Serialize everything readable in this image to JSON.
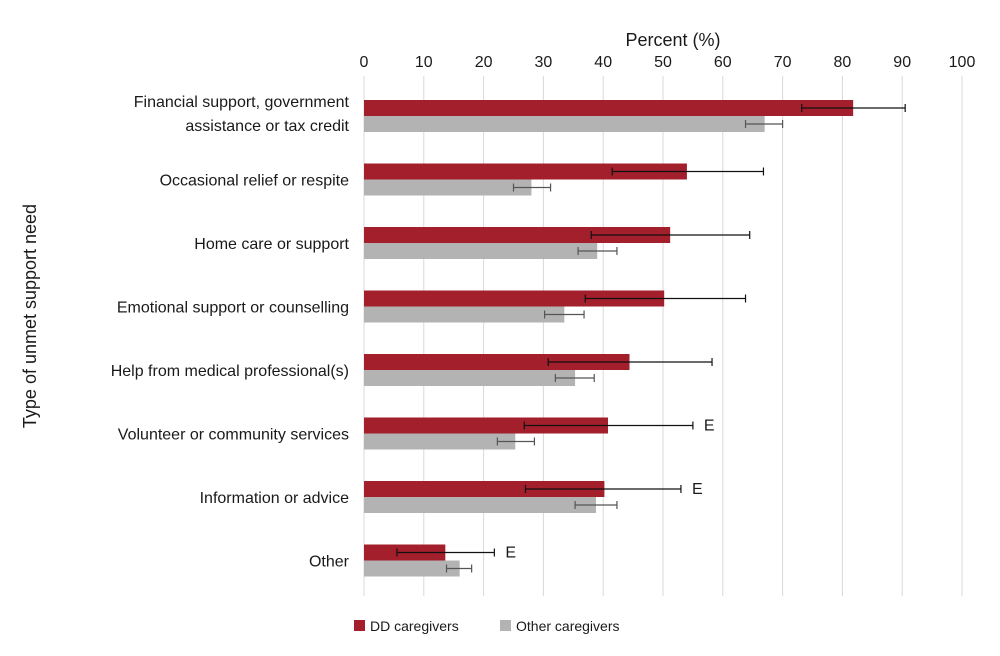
{
  "chart_data": {
    "type": "bar",
    "orientation": "horizontal",
    "xlabel": "Percent (%)",
    "ylabel": "Type of unmet support need",
    "xlim": [
      0,
      100
    ],
    "xticks": [
      0,
      10,
      20,
      30,
      40,
      50,
      60,
      70,
      80,
      90,
      100
    ],
    "grid": "vertical",
    "legend_position": "bottom",
    "categories": [
      [
        "Financial support, government",
        "assistance or tax credit"
      ],
      [
        "Occasional relief or respite"
      ],
      [
        "Home care or support"
      ],
      [
        "Emotional support or counselling"
      ],
      [
        "Help from medical professional(s)"
      ],
      [
        "Volunteer or community services"
      ],
      [
        "Information or advice"
      ],
      [
        "Other"
      ]
    ],
    "series": [
      {
        "name": "DD caregivers",
        "color": "#a31f2b",
        "values": [
          81.8,
          54.0,
          51.2,
          50.2,
          44.4,
          40.8,
          40.2,
          13.6
        ],
        "error_low": [
          73.2,
          41.5,
          38.0,
          37.0,
          30.8,
          26.8,
          27.0,
          5.5
        ],
        "error_high": [
          90.5,
          66.8,
          64.5,
          63.8,
          58.2,
          55.0,
          53.0,
          21.8
        ],
        "annotations": [
          "",
          "",
          "",
          "",
          "",
          "E",
          "E",
          "E"
        ]
      },
      {
        "name": "Other caregivers",
        "color": "#b3b3b3",
        "values": [
          67.0,
          28.0,
          39.0,
          33.5,
          35.3,
          25.3,
          38.8,
          16.0
        ],
        "error_low": [
          63.8,
          25.0,
          35.8,
          30.2,
          32.0,
          22.3,
          35.3,
          13.8
        ],
        "error_high": [
          70.0,
          31.2,
          42.3,
          36.8,
          38.5,
          28.5,
          42.3,
          18.0
        ],
        "annotations": [
          "",
          "",
          "",
          "",
          "",
          "",
          "",
          ""
        ]
      }
    ]
  }
}
